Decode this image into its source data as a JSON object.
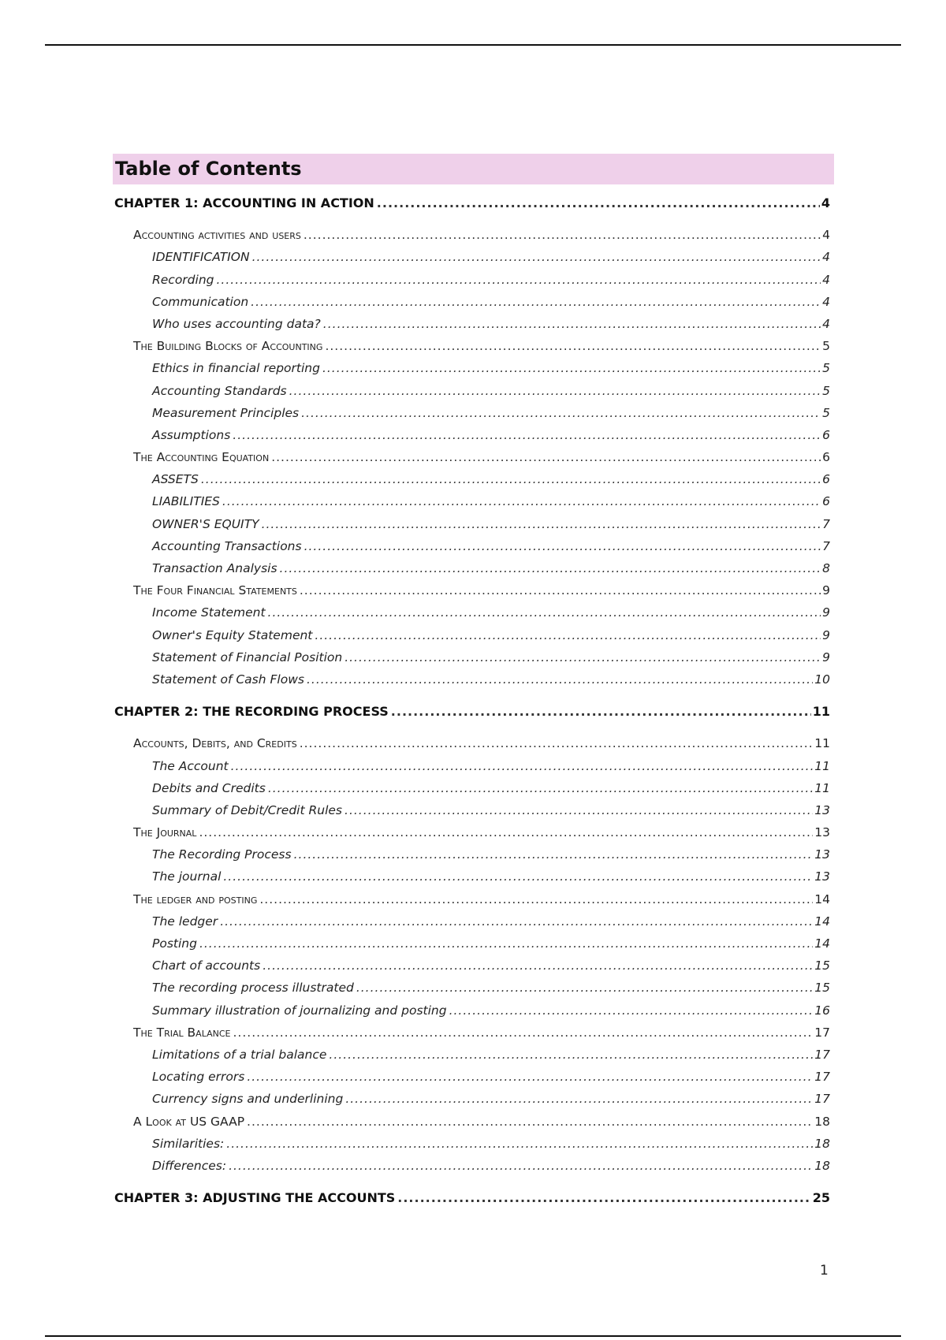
{
  "title": "Table of Contents",
  "colors": {
    "title_band": "#efd0ea"
  },
  "entries": [
    {
      "level": "chapter",
      "label": "CHAPTER 1: ACCOUNTING IN ACTION",
      "page": "4"
    },
    {
      "level": "section",
      "label": "Accounting activities and users",
      "page": "4"
    },
    {
      "level": "sub",
      "label": "IDENTIFICATION",
      "page": "4"
    },
    {
      "level": "sub",
      "label": "Recording",
      "page": "4"
    },
    {
      "level": "sub",
      "label": "Communication",
      "page": "4"
    },
    {
      "level": "sub",
      "label": "Who uses accounting data?",
      "page": "4"
    },
    {
      "level": "section",
      "label": "The Building Blocks of Accounting",
      "page": "5"
    },
    {
      "level": "sub",
      "label": "Ethics in financial reporting",
      "page": "5"
    },
    {
      "level": "sub",
      "label": "Accounting Standards",
      "page": "5"
    },
    {
      "level": "sub",
      "label": "Measurement Principles",
      "page": "5"
    },
    {
      "level": "sub",
      "label": "Assumptions",
      "page": "6"
    },
    {
      "level": "section",
      "label": "The Accounting Equation",
      "page": "6"
    },
    {
      "level": "sub",
      "label": "ASSETS",
      "page": "6"
    },
    {
      "level": "sub",
      "label": "LIABILITIES",
      "page": "6"
    },
    {
      "level": "sub",
      "label": "OWNER'S EQUITY",
      "page": "7"
    },
    {
      "level": "sub",
      "label": "Accounting Transactions",
      "page": "7"
    },
    {
      "level": "sub",
      "label": "Transaction Analysis",
      "page": "8"
    },
    {
      "level": "section",
      "label": "The Four Financial Statements",
      "page": "9"
    },
    {
      "level": "sub",
      "label": "Income Statement",
      "page": "9"
    },
    {
      "level": "sub",
      "label": "Owner's Equity Statement",
      "page": "9"
    },
    {
      "level": "sub",
      "label": "Statement of Financial Position",
      "page": "9"
    },
    {
      "level": "sub",
      "label": "Statement of Cash Flows",
      "page": "10"
    },
    {
      "level": "chapter",
      "label": "CHAPTER 2: THE RECORDING PROCESS",
      "page": "11"
    },
    {
      "level": "section",
      "label": "Accounts, Debits, and Credits",
      "page": "11"
    },
    {
      "level": "sub",
      "label": "The Account",
      "page": "11"
    },
    {
      "level": "sub",
      "label": "Debits and Credits",
      "page": "11"
    },
    {
      "level": "sub",
      "label": "Summary of Debit/Credit Rules",
      "page": "13"
    },
    {
      "level": "section",
      "label": "The Journal",
      "page": "13"
    },
    {
      "level": "sub",
      "label": "The Recording Process",
      "page": "13"
    },
    {
      "level": "sub",
      "label": "The journal",
      "page": "13"
    },
    {
      "level": "section",
      "label": "The ledger and posting",
      "page": "14"
    },
    {
      "level": "sub",
      "label": "The ledger",
      "page": "14"
    },
    {
      "level": "sub",
      "label": "Posting",
      "page": "14"
    },
    {
      "level": "sub",
      "label": "Chart of accounts",
      "page": "15"
    },
    {
      "level": "sub",
      "label": "The recording process illustrated",
      "page": "15"
    },
    {
      "level": "sub",
      "label": "Summary illustration of journalizing and posting",
      "page": "16"
    },
    {
      "level": "section",
      "label": "The Trial Balance",
      "page": "17"
    },
    {
      "level": "sub",
      "label": "Limitations of a trial balance",
      "page": "17"
    },
    {
      "level": "sub",
      "label": "Locating errors",
      "page": "17"
    },
    {
      "level": "sub",
      "label": "Currency signs and underlining",
      "page": "17"
    },
    {
      "level": "section",
      "label": "A Look at US GAAP",
      "page": "18"
    },
    {
      "level": "sub",
      "label": "Similarities:",
      "page": "18"
    },
    {
      "level": "sub",
      "label": "Differences:",
      "page": "18"
    },
    {
      "level": "chapter",
      "label": "CHAPTER 3: ADJUSTING THE ACCOUNTS",
      "page": "25"
    }
  ],
  "page_number": "1"
}
